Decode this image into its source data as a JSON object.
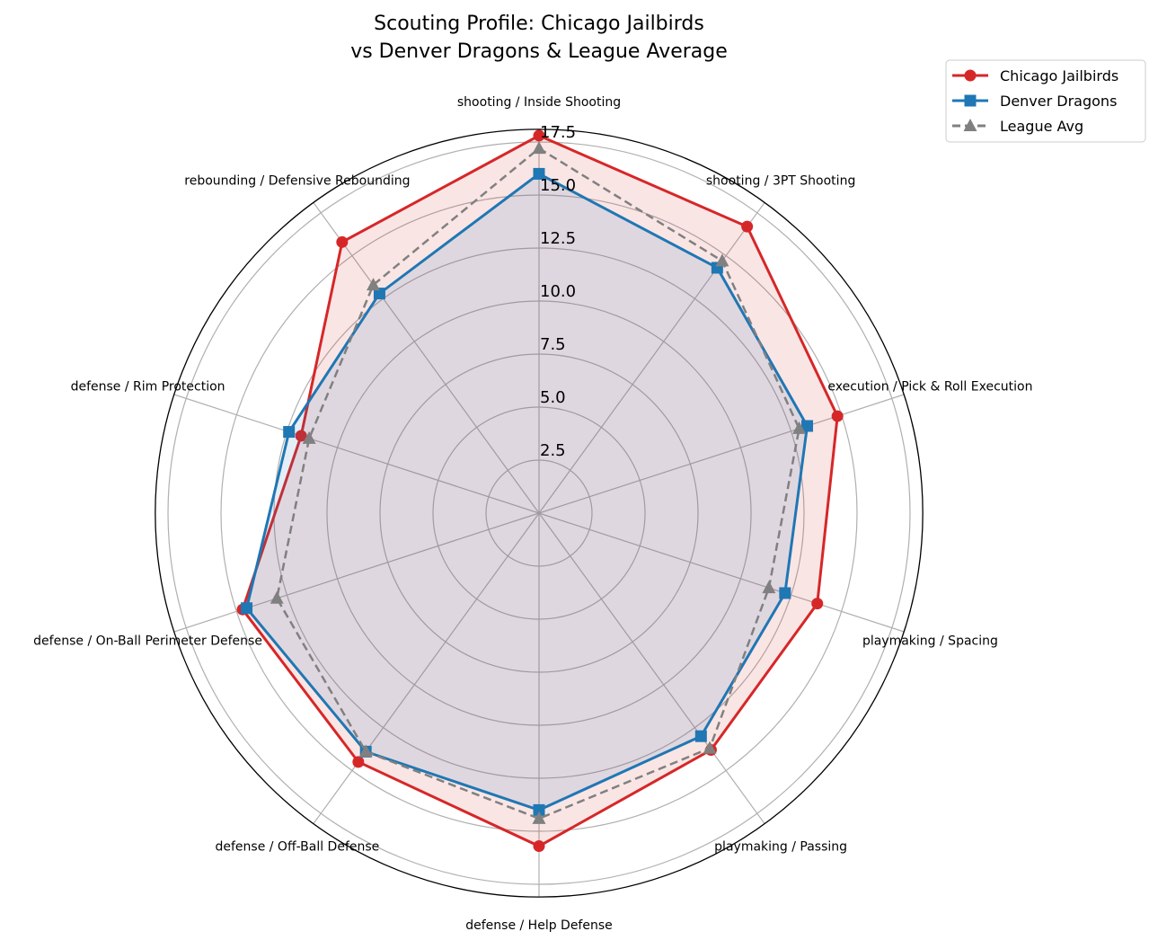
{
  "chart_data": {
    "type": "radar",
    "title_line1": "Scouting Profile: Chicago Jailbirds",
    "title_line2": "vs Denver Dragons & League Average",
    "categories": [
      "shooting / Inside Shooting",
      "shooting / 3PT Shooting",
      "execution / Pick & Roll Execution",
      "playmaking / Spacing",
      "playmaking / Passing",
      "defense / Help Defense",
      "defense / Off-Ball Defense",
      "defense / On-Ball Perimeter Defense",
      "defense / Rim Protection",
      "rebounding / Defensive Rebounding"
    ],
    "rlim": [
      0,
      18.1
    ],
    "rticks": [
      "2.5",
      "5.0",
      "7.5",
      "10.0",
      "12.5",
      "15.0",
      "17.5"
    ],
    "grid": true,
    "legend_position": "top-right",
    "series": [
      {
        "name": "Chicago Jailbirds",
        "color": "#d62728",
        "marker": "circle",
        "linestyle": "solid",
        "fill": true,
        "values": [
          17.8,
          16.7,
          14.8,
          13.8,
          13.8,
          15.7,
          14.5,
          14.7,
          11.8,
          15.8
        ]
      },
      {
        "name": "Denver Dragons",
        "color": "#1f77b4",
        "marker": "square",
        "linestyle": "solid",
        "fill": true,
        "values": [
          16.0,
          14.3,
          13.3,
          12.2,
          13.0,
          14.0,
          13.9,
          14.5,
          12.4,
          12.8
        ]
      },
      {
        "name": "League Avg",
        "color": "#808080",
        "marker": "triangle",
        "linestyle": "dashed",
        "fill": false,
        "values": [
          17.2,
          14.7,
          12.9,
          11.4,
          13.7,
          14.4,
          13.9,
          13.0,
          11.4,
          13.3
        ]
      }
    ]
  }
}
